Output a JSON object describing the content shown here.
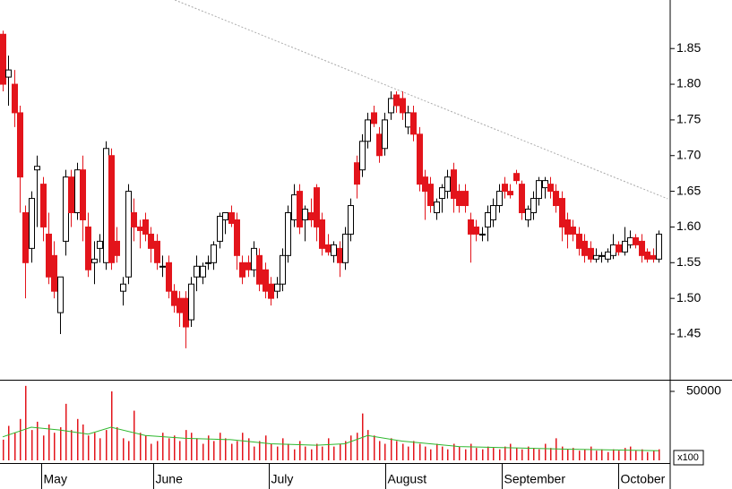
{
  "chart_data": {
    "type": "candlestick",
    "xlim": [
      -0.47,
      117.05
    ],
    "ylim": [
      1.386,
      1.918
    ],
    "yticks": [
      1.45,
      {
        "value": 1.5,
        "label": "1.50"
      },
      1.55,
      {
        "value": 1.6,
        "label": "1.60"
      },
      1.65,
      {
        "value": 1.7,
        "label": "1.70"
      },
      1.75,
      {
        "value": 1.8,
        "label": "1.80"
      },
      1.85
    ],
    "xticks": [
      {
        "value": 6.7,
        "label": "May"
      },
      {
        "value": 26.4,
        "label": "June"
      },
      {
        "value": 46.7,
        "label": "July"
      },
      {
        "value": 67.1,
        "label": "August"
      },
      {
        "value": 87.5,
        "label": "September"
      },
      {
        "value": 107.9,
        "label": "October"
      }
    ],
    "up_color": "#ffffff",
    "down_color": "#e3141b",
    "ohlc": [
      [
        1.87,
        1.875,
        1.79,
        1.8
      ],
      [
        1.81,
        1.84,
        1.77,
        1.82
      ],
      [
        1.8,
        1.82,
        1.74,
        1.76
      ],
      [
        1.76,
        1.77,
        1.62,
        1.67
      ],
      [
        1.62,
        1.63,
        1.5,
        1.55
      ],
      [
        1.57,
        1.65,
        1.55,
        1.64
      ],
      [
        1.68,
        1.7,
        1.6,
        1.685
      ],
      [
        1.66,
        1.67,
        1.58,
        1.6
      ],
      [
        1.59,
        1.62,
        1.52,
        1.53
      ],
      [
        1.56,
        1.58,
        1.5,
        1.51
      ],
      [
        1.48,
        1.53,
        1.45,
        1.53
      ],
      [
        1.58,
        1.68,
        1.56,
        1.67
      ],
      [
        1.67,
        1.68,
        1.6,
        1.62
      ],
      [
        1.62,
        1.69,
        1.61,
        1.68
      ],
      [
        1.68,
        1.7,
        1.58,
        1.61
      ],
      [
        1.6,
        1.62,
        1.53,
        1.54
      ],
      [
        1.55,
        1.58,
        1.52,
        1.555
      ],
      [
        1.57,
        1.59,
        1.55,
        1.58
      ],
      [
        1.55,
        1.72,
        1.54,
        1.71
      ],
      [
        1.7,
        1.71,
        1.54,
        1.55
      ],
      [
        1.58,
        1.6,
        1.55,
        1.56
      ],
      [
        1.51,
        1.53,
        1.49,
        1.52
      ],
      [
        1.53,
        1.66,
        1.52,
        1.65
      ],
      [
        1.62,
        1.64,
        1.58,
        1.6
      ],
      [
        1.6,
        1.61,
        1.57,
        1.595
      ],
      [
        1.61,
        1.62,
        1.58,
        1.59
      ],
      [
        1.59,
        1.6,
        1.55,
        1.57
      ],
      [
        1.58,
        1.59,
        1.54,
        1.55
      ],
      [
        1.545,
        1.56,
        1.53,
        1.545
      ],
      [
        1.55,
        1.56,
        1.5,
        1.51
      ],
      [
        1.51,
        1.52,
        1.48,
        1.49
      ],
      [
        1.5,
        1.51,
        1.46,
        1.48
      ],
      [
        1.5,
        1.51,
        1.43,
        1.46
      ],
      [
        1.47,
        1.53,
        1.46,
        1.52
      ],
      [
        1.53,
        1.56,
        1.51,
        1.545
      ],
      [
        1.53,
        1.55,
        1.52,
        1.545
      ],
      [
        1.55,
        1.56,
        1.54,
        1.55
      ],
      [
        1.55,
        1.58,
        1.54,
        1.575
      ],
      [
        1.58,
        1.62,
        1.57,
        1.615
      ],
      [
        1.61,
        1.62,
        1.59,
        1.62
      ],
      [
        1.62,
        1.63,
        1.6,
        1.605
      ],
      [
        1.61,
        1.62,
        1.54,
        1.56
      ],
      [
        1.55,
        1.56,
        1.52,
        1.53
      ],
      [
        1.55,
        1.56,
        1.53,
        1.54
      ],
      [
        1.54,
        1.58,
        1.53,
        1.57
      ],
      [
        1.56,
        1.57,
        1.51,
        1.52
      ],
      [
        1.54,
        1.55,
        1.5,
        1.51
      ],
      [
        1.52,
        1.53,
        1.49,
        1.5
      ],
      [
        1.51,
        1.53,
        1.5,
        1.52
      ],
      [
        1.52,
        1.57,
        1.51,
        1.56
      ],
      [
        1.56,
        1.63,
        1.55,
        1.62
      ],
      [
        1.61,
        1.66,
        1.6,
        1.645
      ],
      [
        1.65,
        1.66,
        1.59,
        1.6
      ],
      [
        1.61,
        1.63,
        1.58,
        1.625
      ],
      [
        1.62,
        1.64,
        1.6,
        1.61
      ],
      [
        1.655,
        1.66,
        1.58,
        1.6
      ],
      [
        1.61,
        1.62,
        1.56,
        1.57
      ],
      [
        1.575,
        1.59,
        1.56,
        1.565
      ],
      [
        1.56,
        1.58,
        1.55,
        1.575
      ],
      [
        1.57,
        1.58,
        1.53,
        1.55
      ],
      [
        1.55,
        1.6,
        1.54,
        1.59
      ],
      [
        1.59,
        1.64,
        1.58,
        1.63
      ],
      [
        1.69,
        1.7,
        1.64,
        1.66
      ],
      [
        1.68,
        1.73,
        1.67,
        1.72
      ],
      [
        1.72,
        1.76,
        1.71,
        1.75
      ],
      [
        1.76,
        1.77,
        1.74,
        1.745
      ],
      [
        1.73,
        1.74,
        1.69,
        1.7
      ],
      [
        1.71,
        1.76,
        1.7,
        1.75
      ],
      [
        1.76,
        1.79,
        1.75,
        1.78
      ],
      [
        1.785,
        1.79,
        1.76,
        1.77
      ],
      [
        1.78,
        1.79,
        1.75,
        1.76
      ],
      [
        1.74,
        1.77,
        1.73,
        1.76
      ],
      [
        1.76,
        1.77,
        1.72,
        1.73
      ],
      [
        1.73,
        1.74,
        1.65,
        1.66
      ],
      [
        1.67,
        1.68,
        1.61,
        1.65
      ],
      [
        1.66,
        1.67,
        1.62,
        1.63
      ],
      [
        1.62,
        1.64,
        1.61,
        1.635
      ],
      [
        1.64,
        1.66,
        1.62,
        1.655
      ],
      [
        1.65,
        1.68,
        1.64,
        1.67
      ],
      [
        1.68,
        1.69,
        1.62,
        1.64
      ],
      [
        1.65,
        1.66,
        1.62,
        1.63
      ],
      [
        1.65,
        1.66,
        1.62,
        1.63
      ],
      [
        1.61,
        1.62,
        1.55,
        1.59
      ],
      [
        1.6,
        1.61,
        1.58,
        1.59
      ],
      [
        1.59,
        1.6,
        1.58,
        1.59
      ],
      [
        1.6,
        1.63,
        1.58,
        1.62
      ],
      [
        1.61,
        1.64,
        1.6,
        1.63
      ],
      [
        1.63,
        1.66,
        1.62,
        1.65
      ],
      [
        1.66,
        1.67,
        1.64,
        1.65
      ],
      [
        1.65,
        1.66,
        1.64,
        1.645
      ],
      [
        1.675,
        1.68,
        1.66,
        1.665
      ],
      [
        1.66,
        1.665,
        1.61,
        1.62
      ],
      [
        1.61,
        1.63,
        1.6,
        1.625
      ],
      [
        1.62,
        1.65,
        1.61,
        1.64
      ],
      [
        1.64,
        1.67,
        1.63,
        1.665
      ],
      [
        1.655,
        1.67,
        1.64,
        1.665
      ],
      [
        1.66,
        1.67,
        1.64,
        1.65
      ],
      [
        1.65,
        1.66,
        1.62,
        1.63
      ],
      [
        1.64,
        1.65,
        1.58,
        1.6
      ],
      [
        1.61,
        1.62,
        1.57,
        1.59
      ],
      [
        1.6,
        1.61,
        1.58,
        1.59
      ],
      [
        1.59,
        1.6,
        1.56,
        1.57
      ],
      [
        1.58,
        1.59,
        1.55,
        1.56
      ],
      [
        1.57,
        1.58,
        1.55,
        1.555
      ],
      [
        1.555,
        1.57,
        1.55,
        1.56
      ],
      [
        1.56,
        1.565,
        1.55,
        1.56
      ],
      [
        1.555,
        1.57,
        1.55,
        1.565
      ],
      [
        1.56,
        1.59,
        1.555,
        1.575
      ],
      [
        1.575,
        1.58,
        1.56,
        1.565
      ],
      [
        1.565,
        1.6,
        1.56,
        1.58
      ],
      [
        1.575,
        1.595,
        1.57,
        1.585
      ],
      [
        1.585,
        1.59,
        1.57,
        1.575
      ],
      [
        1.58,
        1.59,
        1.55,
        1.56
      ],
      [
        1.565,
        1.57,
        1.55,
        1.555
      ],
      [
        1.56,
        1.57,
        1.55,
        1.555
      ],
      [
        1.555,
        1.595,
        1.55,
        1.59
      ]
    ],
    "trendline": {
      "x": [
        30.2,
        116.6
      ],
      "values": [
        1.918,
        1.6395
      ],
      "color": "#aaaaaa"
    },
    "volume": {
      "ylim": [
        0,
        57800
      ],
      "yticks": [
        50000
      ],
      "unit": "x100",
      "color": "#e3141b",
      "values": [
        15000,
        25000,
        20000,
        30000,
        54000,
        22000,
        28000,
        18000,
        26000,
        20000,
        24000,
        41000,
        22000,
        30000,
        26000,
        18000,
        20000,
        16000,
        22000,
        50000,
        24000,
        16000,
        14000,
        36000,
        20000,
        18000,
        12000,
        14000,
        20000,
        16000,
        18000,
        14000,
        22000,
        20000,
        16000,
        12000,
        18000,
        14000,
        20000,
        16000,
        12000,
        14000,
        20000,
        16000,
        10000,
        14000,
        18000,
        12000,
        10000,
        16000,
        12000,
        8000,
        14000,
        10000,
        8000,
        12000,
        10000,
        16000,
        10000,
        12000,
        14000,
        18000,
        20000,
        34000,
        22000,
        18000,
        14000,
        12000,
        16000,
        14000,
        12000,
        10000,
        14000,
        12000,
        10000,
        8000,
        12000,
        10000,
        8000,
        12000,
        10000,
        8000,
        12000,
        9000,
        8000,
        10000,
        9000,
        8000,
        10000,
        12000,
        9000,
        8000,
        10000,
        9000,
        8000,
        12000,
        9000,
        16000,
        10000,
        8000,
        9000,
        7000,
        8000,
        10000,
        7000,
        8000,
        6000,
        8000,
        7000,
        9000,
        10000,
        7000,
        8000,
        6000,
        7000,
        8000
      ],
      "ma": {
        "color": "#2eb82e",
        "x": [
          0,
          5,
          10,
          15,
          19,
          25,
          32,
          40,
          47,
          55,
          60,
          64,
          70,
          80,
          90,
          100,
          115
        ],
        "values": [
          17000,
          24000,
          22000,
          19000,
          24000,
          18000,
          16000,
          15000,
          12000,
          11000,
          12000,
          18000,
          14000,
          10000,
          9000,
          8000,
          7000
        ]
      }
    }
  }
}
